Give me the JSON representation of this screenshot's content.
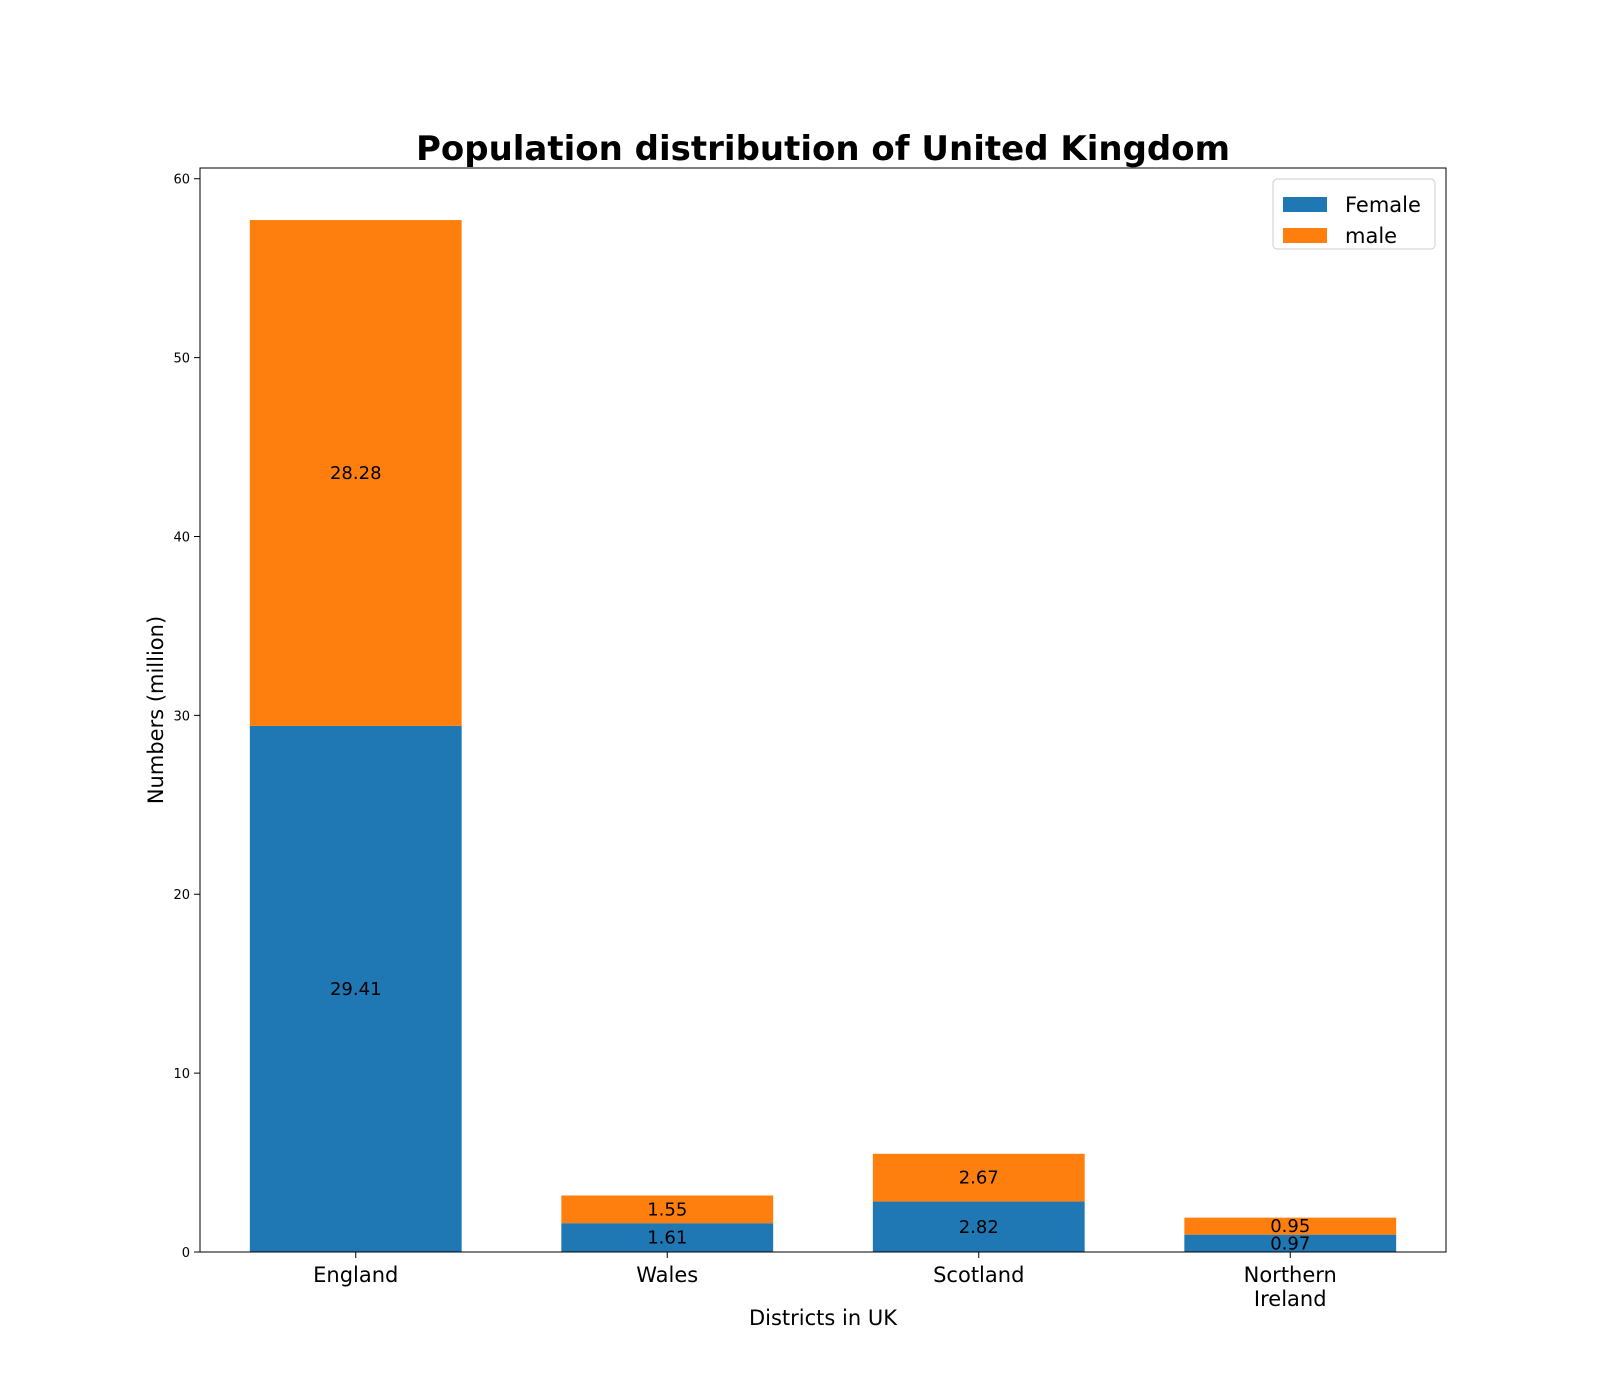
{
  "chart_data": {
    "type": "bar",
    "stacked": true,
    "title": "Population distribution of United Kingdom",
    "xlabel": "Districts in UK",
    "ylabel": "Numbers (million)",
    "categories": [
      "England",
      "Wales",
      "Scotland",
      "Northern\nIreland"
    ],
    "series": [
      {
        "name": "Female",
        "values": [
          29.41,
          1.61,
          2.82,
          0.97
        ],
        "color": "#1f77b4"
      },
      {
        "name": "male",
        "values": [
          28.28,
          1.55,
          2.67,
          0.95
        ],
        "color": "#ff7f0e"
      }
    ],
    "data_labels": [
      [
        "29.41",
        "1.61",
        "2.82",
        "0.97"
      ],
      [
        "28.28",
        "1.55",
        "2.67",
        "0.95"
      ]
    ],
    "yticks": [
      0,
      10,
      20,
      30,
      40,
      50,
      60
    ],
    "ylim": [
      0,
      60.6
    ],
    "grid": false,
    "legend_position": "top-right"
  }
}
